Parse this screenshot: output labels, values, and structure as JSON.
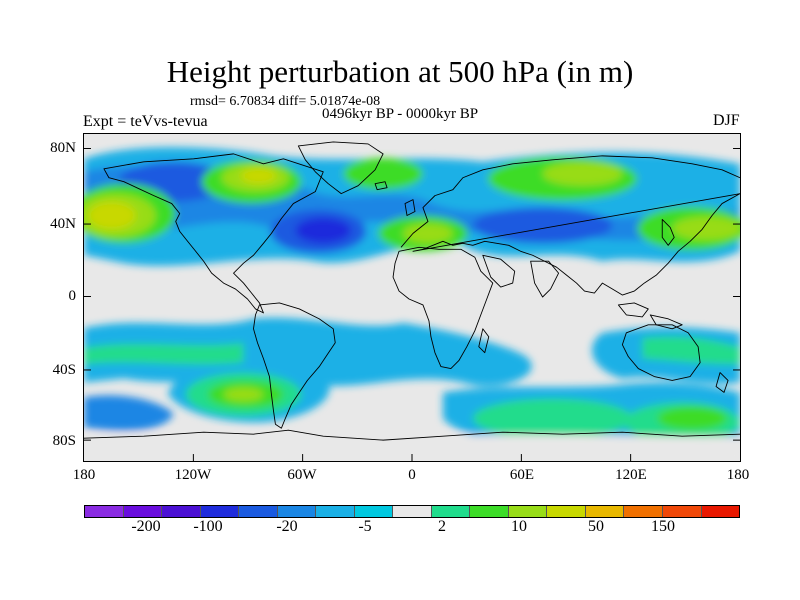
{
  "title": "Height perturbation at 500 hPa (in m)",
  "stats": "rmsd= 6.70834 diff= 5.01874e-08",
  "period": "0496kyr BP - 0000kyr BP",
  "experiment": "Expt = teVvs-tevua",
  "season": "DJF",
  "map": {
    "lat_ticks": [
      "80N",
      "40N",
      "0",
      "40S",
      "80S"
    ],
    "lon_ticks": [
      "180",
      "120W",
      "60W",
      "0",
      "60E",
      "120E",
      "180"
    ]
  },
  "colorbar": {
    "colors": [
      "#8a2be2",
      "#6a0dde",
      "#4b10d4",
      "#1f2cdc",
      "#1a5ae0",
      "#1a86e4",
      "#1ab0e6",
      "#00c8e0",
      "#e8e8e8",
      "#20dc8c",
      "#3cdc28",
      "#98dc18",
      "#c8d800",
      "#e8b800",
      "#f07000",
      "#f04808",
      "#e81800"
    ],
    "labels": [
      "-200",
      "-100",
      "-20",
      "-5",
      "2",
      "10",
      "50",
      "150"
    ]
  },
  "colors": {
    "land_outline": "#000000",
    "neutral": "#e8e8e8"
  }
}
